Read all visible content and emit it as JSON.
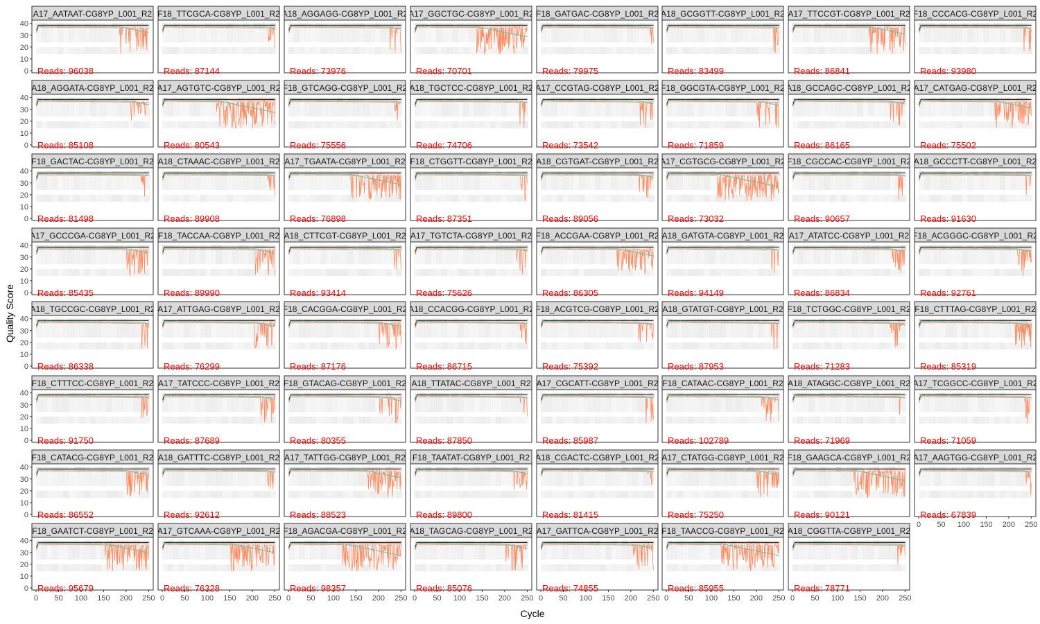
{
  "chart_data": {
    "type": "line",
    "xlabel": "Cycle",
    "ylabel": "Quality Score",
    "xlim": [
      0,
      251
    ],
    "ylim": [
      0,
      41
    ],
    "x_ticks": [
      0,
      50,
      100,
      150,
      200,
      250
    ],
    "y_ticks": [
      0,
      10,
      20,
      30,
      40
    ],
    "reads_prefix": "Reads: ",
    "colors": {
      "mean": "#66c2a5",
      "quartile": "#fc8d62",
      "median": "#000000",
      "reads": "#ff0000",
      "strip": "#d9d9d9",
      "heat": "#bdbdbd"
    },
    "panels": [
      {
        "label": "A17_AATAAT-CG8YP_L001_R2",
        "reads": "96038",
        "drop": 0.4
      },
      {
        "label": "F18_TTCGCA-CG8YP_L001_R2",
        "reads": "87144",
        "drop": 0.1
      },
      {
        "label": "A18_AGGAGG-CG8YP_L001_R2",
        "reads": "73976",
        "drop": 0.15
      },
      {
        "label": "A17_GGCTGC-CG8YP_L001_R2",
        "reads": "70701",
        "drop": 0.7
      },
      {
        "label": "F18_GATGAC-CG8YP_L001_R2",
        "reads": "79975",
        "drop": 0.05
      },
      {
        "label": "A18_GCGGTT-CG8YP_L001_R2",
        "reads": "83499",
        "drop": 0.1
      },
      {
        "label": "A17_TTCCGT-CG8YP_L001_R2",
        "reads": "86841",
        "drop": 0.5
      },
      {
        "label": "F18_CCCACG-CG8YP_L001_R2",
        "reads": "93980",
        "drop": 0.1
      },
      {
        "label": "A18_AGGATA-CG8YP_L001_R2",
        "reads": "85108",
        "drop": 0.25
      },
      {
        "label": "A17_AGTGTC-CG8YP_L001_R2",
        "reads": "80543",
        "drop": 0.8
      },
      {
        "label": "F18_GTCAGG-CG8YP_L001_R2",
        "reads": "75556",
        "drop": 0.1
      },
      {
        "label": "A18_TGCTCC-CG8YP_L001_R2",
        "reads": "74706",
        "drop": 0.1
      },
      {
        "label": "A17_CCGTAG-CG8YP_L001_R2",
        "reads": "73542",
        "drop": 0.2
      },
      {
        "label": "F18_GGCGTA-CG8YP_L001_R2",
        "reads": "71859",
        "drop": 0.3
      },
      {
        "label": "A18_GCCAGC-CG8YP_L001_R2",
        "reads": "86165",
        "drop": 0.2
      },
      {
        "label": "A17_CATGAG-CG8YP_L001_R2",
        "reads": "75502",
        "drop": 0.5
      },
      {
        "label": "F18_GACTAC-CG8YP_L001_R2",
        "reads": "81498",
        "drop": 0.1
      },
      {
        "label": "A18_CTAAAC-CG8YP_L001_R2",
        "reads": "89908",
        "drop": 0.1
      },
      {
        "label": "A17_TGAATA-CG8YP_L001_R2",
        "reads": "76898",
        "drop": 0.7
      },
      {
        "label": "F18_CTGGTT-CG8YP_L001_R2",
        "reads": "87351",
        "drop": 0.1
      },
      {
        "label": "A18_CGTGAT-CG8YP_L001_R2",
        "reads": "89056",
        "drop": 0.2
      },
      {
        "label": "A17_CGTGCG-CG8YP_L001_R2",
        "reads": "73032",
        "drop": 0.85
      },
      {
        "label": "F18_CGCCAC-CG8YP_L001_R2",
        "reads": "90657",
        "drop": 0.1
      },
      {
        "label": "A18_GCCCTT-CG8YP_L001_R2",
        "reads": "91630",
        "drop": 0.1
      },
      {
        "label": "A17_GCCCGA-CG8YP_L001_R2",
        "reads": "85435",
        "drop": 0.3
      },
      {
        "label": "F18_TACCAA-CG8YP_L001_R2",
        "reads": "89990",
        "drop": 0.3
      },
      {
        "label": "A18_CTTCGT-CG8YP_L001_R2",
        "reads": "93414",
        "drop": 0.1
      },
      {
        "label": "A17_TGTCTA-CG8YP_L001_R2",
        "reads": "75626",
        "drop": 0.15
      },
      {
        "label": "F18_ACCGAA-CG8YP_L001_R2",
        "reads": "86305",
        "drop": 0.5
      },
      {
        "label": "A18_GATGTA-CG8YP_L001_R2",
        "reads": "94149",
        "drop": 0.1
      },
      {
        "label": "A17_ATATCC-CG8YP_L001_R2",
        "reads": "86834",
        "drop": 0.2
      },
      {
        "label": "F18_ACGGGC-CG8YP_L001_R2",
        "reads": "92761",
        "drop": 0.2
      },
      {
        "label": "A18_TGCCGC-CG8YP_L001_R2",
        "reads": "86338",
        "drop": 0.1
      },
      {
        "label": "A17_ATTGAG-CG8YP_L001_R2",
        "reads": "76299",
        "drop": 0.3
      },
      {
        "label": "F18_CACGGA-CG8YP_L001_R2",
        "reads": "87176",
        "drop": 0.3
      },
      {
        "label": "A18_CCACGG-CG8YP_L001_R2",
        "reads": "86715",
        "drop": 0.1
      },
      {
        "label": "F18_ACGTCG-CG8YP_L001_R2",
        "reads": "75392",
        "drop": 0.2
      },
      {
        "label": "A18_GTATGT-CG8YP_L001_R2",
        "reads": "87953",
        "drop": 0.1
      },
      {
        "label": "F18_TCTGGC-CG8YP_L001_R2",
        "reads": "71283",
        "drop": 0.2
      },
      {
        "label": "F18_CTTTAG-CG8YP_L001_R2",
        "reads": "85319",
        "drop": 0.25
      },
      {
        "label": "F18_CTTTCC-CG8YP_L001_R2",
        "reads": "91750",
        "drop": 0.1
      },
      {
        "label": "A17_TATCCC-CG8YP_L001_R2",
        "reads": "87689",
        "drop": 0.2
      },
      {
        "label": "F18_GTACAG-CG8YP_L001_R2",
        "reads": "80355",
        "drop": 0.3
      },
      {
        "label": "A18_TTATAC-CG8YP_L001_R2",
        "reads": "87850",
        "drop": 0.1
      },
      {
        "label": "A17_CGCATT-CG8YP_L001_R2",
        "reads": "85987",
        "drop": 0.1
      },
      {
        "label": "F18_CATAAC-CG8YP_L001_R2",
        "reads": "102789",
        "drop": 0.25
      },
      {
        "label": "A18_ATAGGC-CG8YP_L001_R2",
        "reads": "71969",
        "drop": 0.1
      },
      {
        "label": "A17_TCGGCC-CG8YP_L001_R2",
        "reads": "71059",
        "drop": 0.1
      },
      {
        "label": "F18_CATACG-CG8YP_L001_R2",
        "reads": "86552",
        "drop": 0.3
      },
      {
        "label": "A18_GATTTC-CG8YP_L001_R2",
        "reads": "92612",
        "drop": 0.1
      },
      {
        "label": "A17_TATTGG-CG8YP_L001_R2",
        "reads": "88523",
        "drop": 0.5
      },
      {
        "label": "F18_TAATAT-CG8YP_L001_R2",
        "reads": "89800",
        "drop": 0.2
      },
      {
        "label": "A18_CGACTC-CG8YP_L001_R2",
        "reads": "81415",
        "drop": 0.1
      },
      {
        "label": "A17_CTATGG-CG8YP_L001_R2",
        "reads": "75250",
        "drop": 0.3
      },
      {
        "label": "F18_GAAGCA-CG8YP_L001_R2",
        "reads": "90121",
        "drop": 0.7
      },
      {
        "label": "A17_AAGTGG-CG8YP_L001_R2",
        "reads": "67839",
        "drop": 0.1
      },
      {
        "label": "F18_GAATCT-CG8YP_L001_R2",
        "reads": "95679",
        "drop": 0.6
      },
      {
        "label": "A17_GTCAAA-CG8YP_L001_R2",
        "reads": "76328",
        "drop": 0.6
      },
      {
        "label": "F18_AGACGA-CG8YP_L001_R2",
        "reads": "98357",
        "drop": 0.8
      },
      {
        "label": "A18_TAGCAG-CG8YP_L001_R2",
        "reads": "85076",
        "drop": 0.3
      },
      {
        "label": "A17_GATTCA-CG8YP_L001_R2",
        "reads": "74855",
        "drop": 0.3
      },
      {
        "label": "F18_TAACCG-CG8YP_L001_R2",
        "reads": "85955",
        "drop": 0.8
      },
      {
        "label": "A18_CGGTTA-CG8YP_L001_R2",
        "reads": "78771",
        "drop": 0.1
      }
    ]
  }
}
